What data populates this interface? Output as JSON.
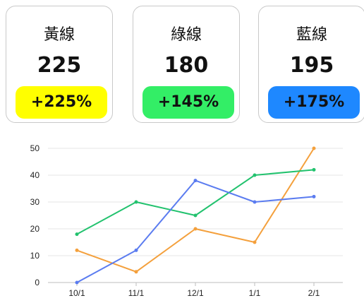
{
  "cards": [
    {
      "label": "黃線",
      "value": "225",
      "change": "+225%",
      "badge_color": "#ffff00"
    },
    {
      "label": "綠線",
      "value": "180",
      "change": "+145%",
      "badge_color": "#33ee66"
    },
    {
      "label": "藍線",
      "value": "195",
      "change": "+175%",
      "badge_color": "#1e88ff"
    }
  ],
  "chart_data": {
    "type": "line",
    "categories": [
      "10/1",
      "11/1",
      "12/1",
      "1/1",
      "2/1"
    ],
    "ylim": [
      0,
      50
    ],
    "yticks": [
      0,
      10,
      20,
      30,
      40,
      50
    ],
    "grid": true,
    "series": [
      {
        "color": "#f4a03c",
        "values": [
          12,
          4,
          20,
          15,
          50
        ]
      },
      {
        "color": "#22c26e",
        "values": [
          18,
          30,
          25,
          40,
          42
        ]
      },
      {
        "color": "#5b7cf0",
        "values": [
          0,
          12,
          38,
          30,
          32
        ]
      }
    ]
  }
}
